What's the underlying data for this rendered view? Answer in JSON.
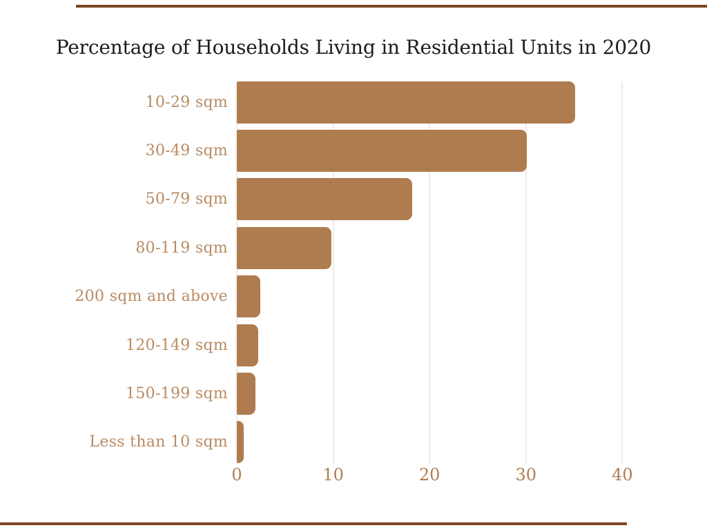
{
  "page": {
    "background": "#ffffff",
    "accent_rule_color": "#7a4522"
  },
  "chart_data": {
    "type": "bar",
    "orientation": "horizontal",
    "title": "Percentage of Households Living in Residential Units in 2020",
    "categories": [
      "10-29 sqm",
      "30-49 sqm",
      "50-79 sqm",
      "80-119 sqm",
      "200 sqm and above",
      "120-149 sqm",
      "150-199 sqm",
      "Less than 10 sqm"
    ],
    "values": [
      35.1,
      30.1,
      18.2,
      9.8,
      2.4,
      2.2,
      1.9,
      0.7
    ],
    "unit": "percent",
    "xlabel": "",
    "ylabel": "",
    "x_ticks": [
      0,
      10,
      20,
      30,
      40
    ],
    "xlim": [
      0,
      44
    ],
    "grid": "vertical-light",
    "legend": "none",
    "colors": {
      "bar": "#af7c50",
      "category_label": "#b98b63",
      "tick_label": "#b17d51",
      "title": "#1f1b18",
      "gridline": "#f2eae3"
    }
  }
}
